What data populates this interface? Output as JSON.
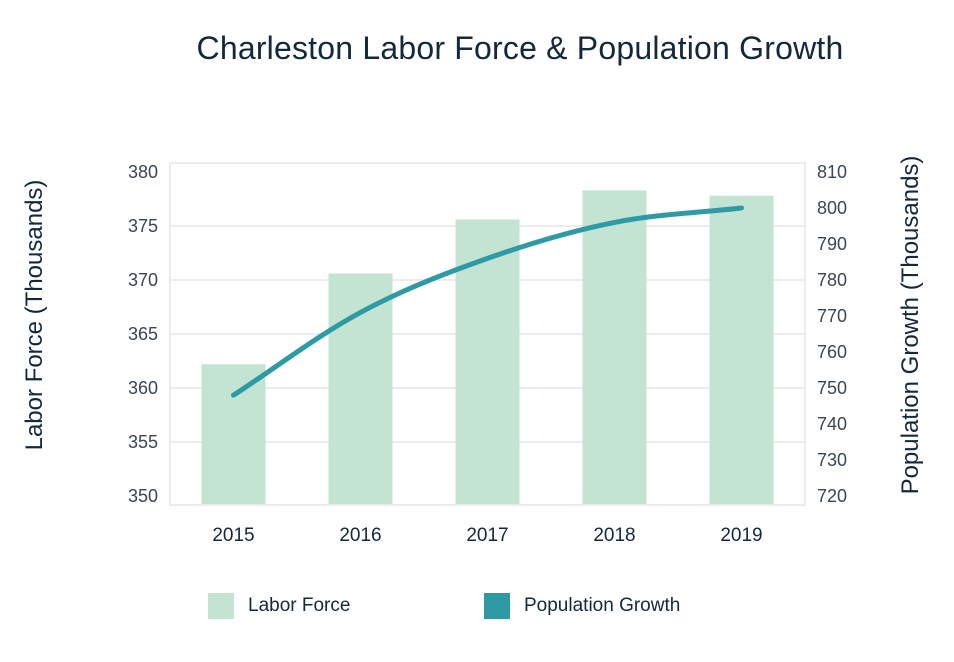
{
  "chart_data": {
    "type": "bar",
    "title": "Charleston Labor Force & Population Growth",
    "categories": [
      "2015",
      "2016",
      "2017",
      "2018",
      "2019"
    ],
    "series": [
      {
        "name": "Labor Force",
        "type": "bar",
        "axis": "left",
        "color": "#c3e4d3",
        "values": [
          362.2,
          370.6,
          375.6,
          378.3,
          377.8
        ]
      },
      {
        "name": "Population Growth",
        "type": "line",
        "axis": "right",
        "color": "#2e9aa4",
        "values": [
          748,
          771,
          786,
          796,
          800
        ]
      }
    ],
    "ylabel": "Labor Force (Thousands)",
    "y2label": "Population Growth (Thousands)",
    "ylim": [
      350,
      380
    ],
    "y2lim": [
      720,
      810
    ],
    "yticks": [
      "350",
      "355",
      "360",
      "365",
      "370",
      "375",
      "380"
    ],
    "y2ticks": [
      "720",
      "730",
      "740",
      "750",
      "760",
      "770",
      "780",
      "790",
      "800",
      "810"
    ],
    "grid": true,
    "legend_position": "bottom"
  }
}
